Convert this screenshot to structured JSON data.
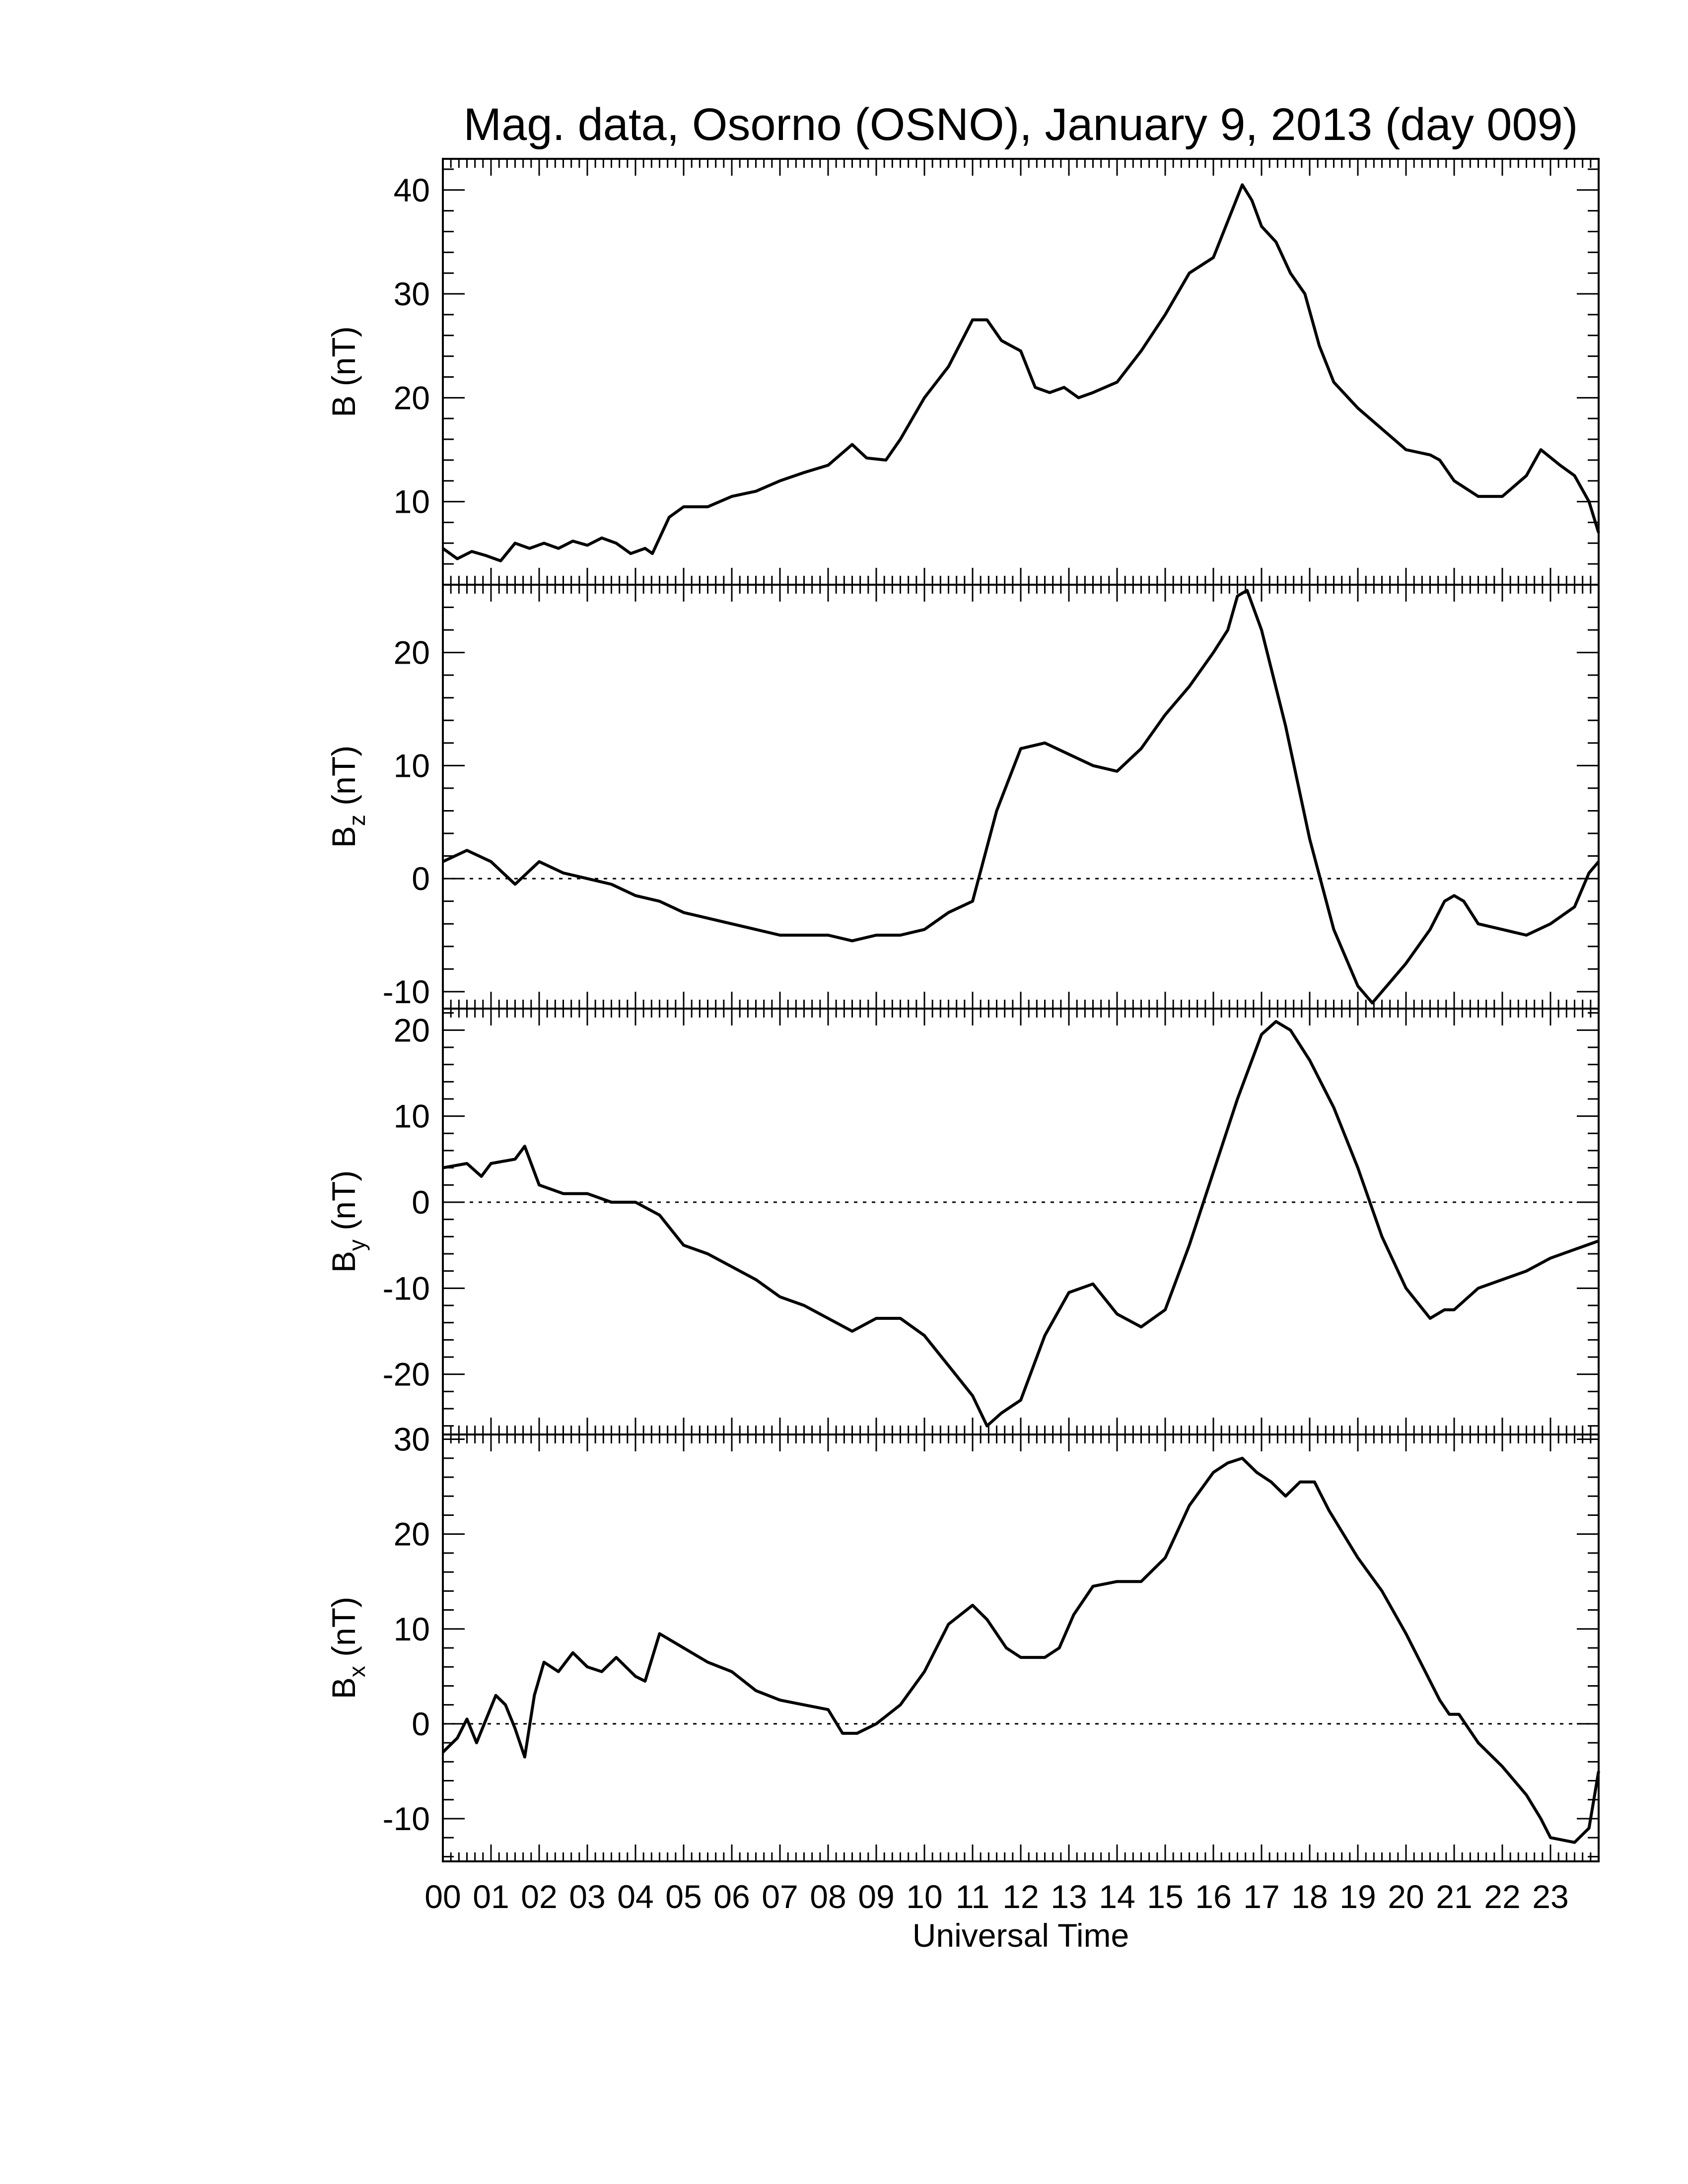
{
  "figure": {
    "title": "Mag. data, Osorno (OSNO), January 9, 2013 (day 009)",
    "xlabel": "Universal Time",
    "x_tick_labels": [
      "00",
      "01",
      "02",
      "03",
      "04",
      "05",
      "06",
      "07",
      "08",
      "09",
      "10",
      "11",
      "12",
      "13",
      "14",
      "15",
      "16",
      "17",
      "18",
      "19",
      "20",
      "21",
      "22",
      "23"
    ]
  },
  "chart_data": [
    {
      "type": "line",
      "panel": "B",
      "ylabel_main": "B",
      "ylabel_sub": "",
      "ylabel_unit": " (nT)",
      "xlim": [
        0,
        24
      ],
      "ylim": [
        2,
        43
      ],
      "yticks": [
        10,
        20,
        30,
        40
      ],
      "zero_line": false,
      "x": [
        0,
        0.3,
        0.6,
        0.9,
        1.2,
        1.5,
        1.8,
        2.1,
        2.4,
        2.7,
        3.0,
        3.3,
        3.6,
        3.9,
        4.2,
        4.35,
        4.7,
        5.0,
        5.5,
        6.0,
        6.5,
        7.0,
        7.5,
        8.0,
        8.5,
        8.8,
        9.2,
        9.5,
        10.0,
        10.5,
        11.0,
        11.3,
        11.6,
        12.0,
        12.3,
        12.6,
        12.9,
        13.2,
        13.5,
        14.0,
        14.5,
        15.0,
        15.5,
        16.0,
        16.3,
        16.6,
        16.8,
        17.0,
        17.3,
        17.6,
        17.9,
        18.2,
        18.5,
        19.0,
        19.5,
        20.0,
        20.5,
        20.7,
        21.0,
        21.5,
        22.0,
        22.5,
        22.8,
        23.2,
        23.5,
        23.8,
        24.0
      ],
      "y": [
        5.5,
        4.5,
        5.2,
        4.8,
        4.3,
        6.0,
        5.5,
        6.0,
        5.5,
        6.2,
        5.8,
        6.5,
        6.0,
        5.0,
        5.5,
        5.0,
        8.5,
        9.5,
        9.5,
        10.5,
        11.0,
        12.0,
        12.8,
        13.5,
        15.5,
        14.2,
        14.0,
        16.0,
        20.0,
        23.0,
        27.5,
        27.5,
        25.5,
        24.5,
        21.0,
        20.5,
        21.0,
        20.0,
        20.5,
        21.5,
        24.5,
        28.0,
        32.0,
        33.5,
        37.0,
        40.5,
        39.0,
        36.5,
        35.0,
        32.0,
        30.0,
        25.0,
        21.5,
        19.0,
        17.0,
        15.0,
        14.5,
        14.0,
        12.0,
        10.5,
        10.5,
        12.5,
        15.0,
        13.5,
        12.5,
        10.0,
        7.0
      ]
    },
    {
      "type": "line",
      "panel": "Bz",
      "ylabel_main": "B",
      "ylabel_sub": "z",
      "ylabel_unit": " (nT)",
      "xlim": [
        0,
        24
      ],
      "ylim": [
        -11.5,
        26
      ],
      "yticks": [
        -10,
        0,
        10,
        20
      ],
      "zero_line": true,
      "x": [
        0,
        0.5,
        1.0,
        1.5,
        2.0,
        2.5,
        3.0,
        3.5,
        4.0,
        4.5,
        5.0,
        5.5,
        6.0,
        6.5,
        7.0,
        7.5,
        8.0,
        8.5,
        9.0,
        9.5,
        10.0,
        10.5,
        11.0,
        11.5,
        12.0,
        12.5,
        13.0,
        13.5,
        14.0,
        14.5,
        15.0,
        15.5,
        16.0,
        16.3,
        16.5,
        16.7,
        17.0,
        17.5,
        18.0,
        18.5,
        19.0,
        19.3,
        19.6,
        20.0,
        20.5,
        20.8,
        21.0,
        21.2,
        21.5,
        22.0,
        22.5,
        23.0,
        23.5,
        23.8,
        24.0
      ],
      "y": [
        1.5,
        2.5,
        1.5,
        -0.5,
        1.5,
        0.5,
        0.0,
        -0.5,
        -1.5,
        -2.0,
        -3.0,
        -3.5,
        -4.0,
        -4.5,
        -5.0,
        -5.0,
        -5.0,
        -5.5,
        -5.0,
        -5.0,
        -4.5,
        -3.0,
        -2.0,
        6.0,
        11.5,
        12.0,
        11.0,
        10.0,
        9.5,
        11.5,
        14.5,
        17.0,
        20.0,
        22.0,
        25.0,
        25.5,
        22.0,
        13.5,
        3.5,
        -4.5,
        -9.5,
        -11.0,
        -9.5,
        -7.5,
        -4.5,
        -2.0,
        -1.5,
        -2.0,
        -4.0,
        -4.5,
        -5.0,
        -4.0,
        -2.5,
        0.5,
        1.5
      ]
    },
    {
      "type": "line",
      "panel": "By",
      "ylabel_main": "B",
      "ylabel_sub": "y",
      "ylabel_unit": " (nT)",
      "xlim": [
        0,
        24
      ],
      "ylim": [
        -27,
        22.5
      ],
      "yticks": [
        -20,
        -10,
        0,
        10,
        20
      ],
      "zero_line": true,
      "x": [
        0,
        0.5,
        0.8,
        1.0,
        1.5,
        1.7,
        2.0,
        2.5,
        3.0,
        3.5,
        4.0,
        4.5,
        5.0,
        5.5,
        6.0,
        6.5,
        7.0,
        7.5,
        8.0,
        8.5,
        9.0,
        9.5,
        10.0,
        10.5,
        11.0,
        11.3,
        11.6,
        12.0,
        12.5,
        13.0,
        13.5,
        14.0,
        14.5,
        15.0,
        15.5,
        16.0,
        16.5,
        17.0,
        17.3,
        17.6,
        18.0,
        18.5,
        19.0,
        19.5,
        20.0,
        20.5,
        20.8,
        21.0,
        21.5,
        22.0,
        22.5,
        23.0,
        23.5,
        24.0
      ],
      "y": [
        4.0,
        4.5,
        3.0,
        4.5,
        5.0,
        6.5,
        2.0,
        1.0,
        1.0,
        0.0,
        0.0,
        -1.5,
        -5.0,
        -6.0,
        -7.5,
        -9.0,
        -11.0,
        -12.0,
        -13.5,
        -15.0,
        -13.5,
        -13.5,
        -15.5,
        -19.0,
        -22.5,
        -26.0,
        -24.5,
        -23.0,
        -15.5,
        -10.5,
        -9.5,
        -13.0,
        -14.5,
        -12.5,
        -5.0,
        3.5,
        12.0,
        19.5,
        21.0,
        20.0,
        16.5,
        11.0,
        4.0,
        -4.0,
        -10.0,
        -13.5,
        -12.5,
        -12.5,
        -10.0,
        -9.0,
        -8.0,
        -6.5,
        -5.5,
        -4.5
      ]
    },
    {
      "type": "line",
      "panel": "Bx",
      "ylabel_main": "B",
      "ylabel_sub": "x",
      "ylabel_unit": " (nT)",
      "xlim": [
        0,
        24
      ],
      "ylim": [
        -14.5,
        30.5
      ],
      "yticks": [
        -10,
        0,
        10,
        20,
        30
      ],
      "zero_line": true,
      "x": [
        0,
        0.3,
        0.5,
        0.7,
        0.9,
        1.1,
        1.3,
        1.5,
        1.7,
        1.9,
        2.1,
        2.4,
        2.7,
        3.0,
        3.3,
        3.6,
        4.0,
        4.2,
        4.5,
        5.0,
        5.5,
        6.0,
        6.5,
        7.0,
        7.5,
        8.0,
        8.3,
        8.6,
        9.0,
        9.5,
        10.0,
        10.5,
        11.0,
        11.3,
        11.7,
        12.0,
        12.5,
        12.8,
        13.1,
        13.5,
        14.0,
        14.5,
        15.0,
        15.5,
        16.0,
        16.3,
        16.6,
        16.9,
        17.2,
        17.5,
        17.8,
        18.1,
        18.4,
        18.7,
        19.0,
        19.5,
        20.0,
        20.5,
        20.7,
        20.9,
        21.1,
        21.3,
        21.5,
        22.0,
        22.5,
        22.8,
        23.0,
        23.5,
        23.8,
        24.0
      ],
      "y": [
        -3.0,
        -1.5,
        0.5,
        -2.0,
        0.5,
        3.0,
        2.0,
        -0.5,
        -3.5,
        3.0,
        6.5,
        5.5,
        7.5,
        6.0,
        5.5,
        7.0,
        5.0,
        4.5,
        9.5,
        8.0,
        6.5,
        5.5,
        3.5,
        2.5,
        2.0,
        1.5,
        -1.0,
        -1.0,
        0.0,
        2.0,
        5.5,
        10.5,
        12.5,
        11.0,
        8.0,
        7.0,
        7.0,
        8.0,
        11.5,
        14.5,
        15.0,
        15.0,
        17.5,
        23.0,
        26.5,
        27.5,
        28.0,
        26.5,
        25.5,
        24.0,
        25.5,
        25.5,
        22.5,
        20.0,
        17.5,
        14.0,
        9.5,
        4.5,
        2.5,
        1.0,
        1.0,
        -0.5,
        -2.0,
        -4.5,
        -7.5,
        -10.0,
        -12.0,
        -12.5,
        -11.0,
        -5.0
      ]
    }
  ]
}
